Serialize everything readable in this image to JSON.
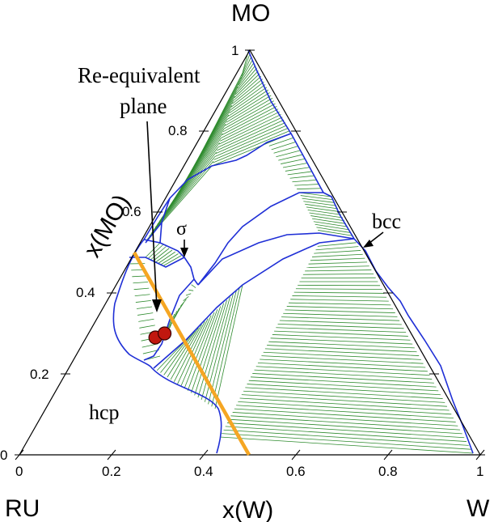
{
  "corners": {
    "top": "MO",
    "left": "RU",
    "right": "W"
  },
  "axes": {
    "x_label": "x(W)",
    "y_label": "x(MO)",
    "x_ticks": [
      "0",
      "0.2",
      "0.4",
      "0.6",
      "0.8",
      "1"
    ],
    "y_ticks": [
      "0",
      "0.2",
      "0.4",
      "0.6",
      "0.8",
      "1"
    ]
  },
  "annotations": {
    "plane_line1": "Re-equivalent",
    "plane_line2": "plane",
    "sigma": "σ",
    "bcc": "bcc",
    "hcp": "hcp"
  },
  "colors": {
    "triangle": "#000000",
    "phase_boundary": "#1f2fd6",
    "tie_line": "#2e8b2e",
    "plane_line": "#f5a623",
    "marker_fill": "#c1170f"
  },
  "chart_data": {
    "type": "ternary",
    "components": [
      "RU",
      "W",
      "MO"
    ],
    "re_equivalent_plane": [
      {
        "W": 0.5,
        "MO": 0.0
      },
      {
        "W": 0.0,
        "MO": 0.5
      }
    ],
    "points": [
      {
        "W": 0.15,
        "MO": 0.29
      },
      {
        "W": 0.165,
        "MO": 0.3
      }
    ]
  }
}
